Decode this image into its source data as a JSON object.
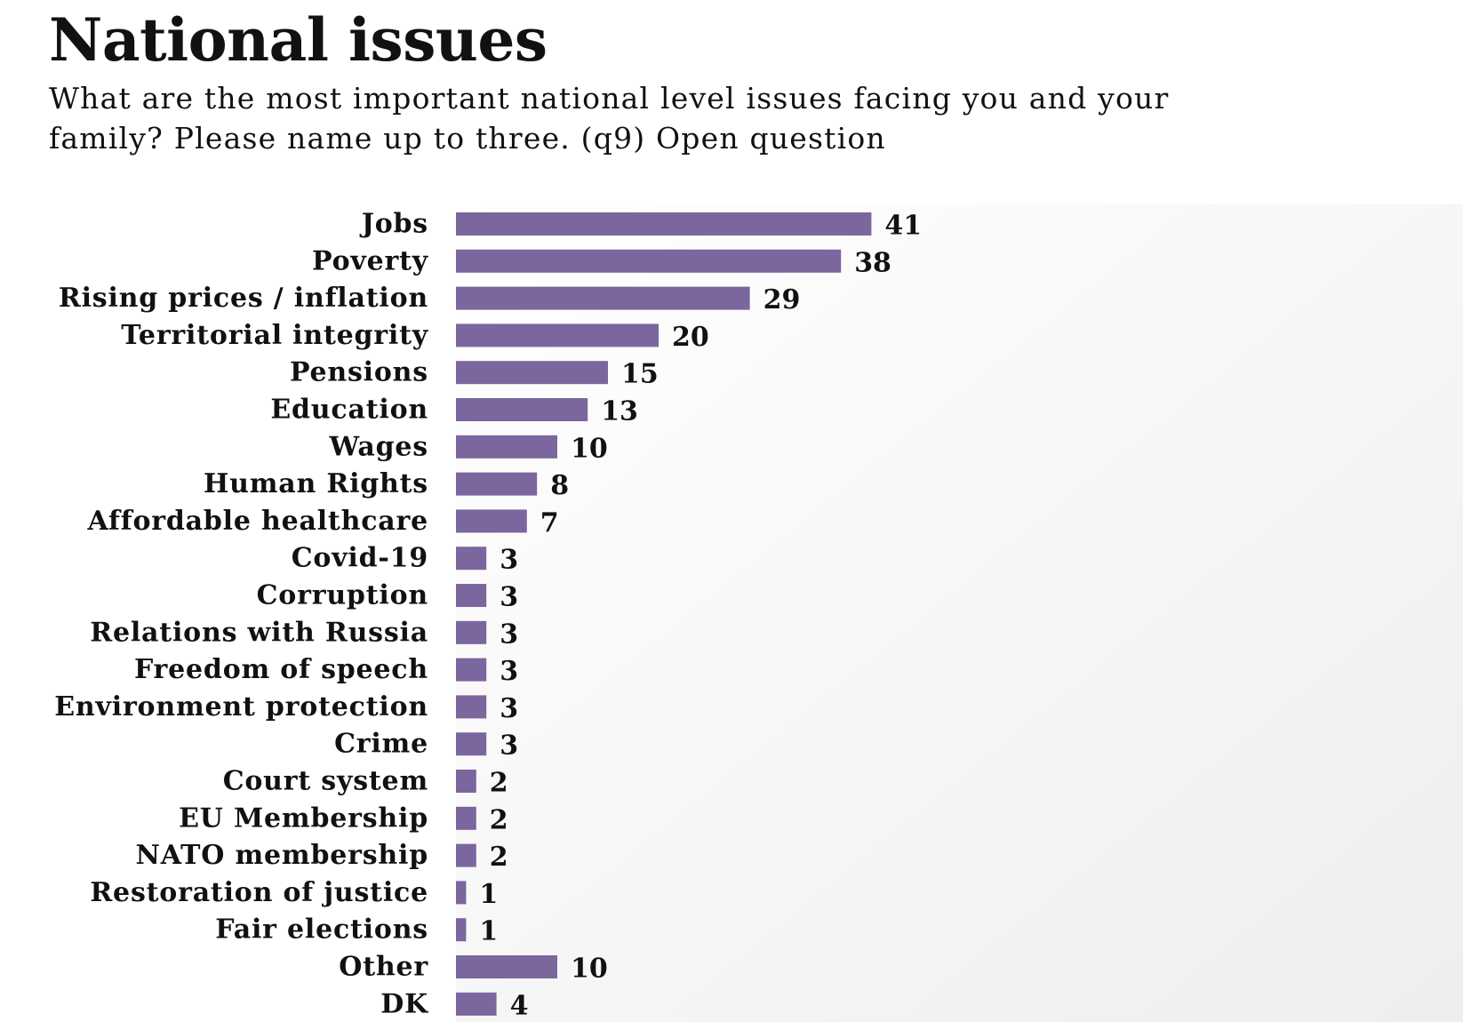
{
  "header": {
    "title": "National issues",
    "subtitle": "What are the most important national level issues facing you and your family? Please name up to three. (q9) Open question"
  },
  "colors": {
    "bar": "#7b669e",
    "panel_light": "#ffffff",
    "panel_dark": "#eeeeee",
    "text": "#111111"
  },
  "chart_data": {
    "type": "bar",
    "orientation": "horizontal",
    "categories": [
      "Jobs",
      "Poverty",
      "Rising prices / inflation",
      "Territorial integrity",
      "Pensions",
      "Education",
      "Wages",
      "Human Rights",
      "Affordable healthcare",
      "Covid-19",
      "Corruption",
      "Relations with Russia",
      "Freedom of speech",
      "Environment protection",
      "Crime",
      "Court system",
      "EU Membership",
      "NATO membership",
      "Restoration of justice",
      "Fair elections",
      "Other",
      "DK"
    ],
    "values": [
      41,
      38,
      29,
      20,
      15,
      13,
      10,
      8,
      7,
      3,
      3,
      3,
      3,
      3,
      3,
      2,
      2,
      2,
      1,
      1,
      10,
      4
    ],
    "data_labels": [
      "41",
      "38",
      "29",
      "20",
      "15",
      "13",
      "10",
      "8",
      "7",
      "3",
      "3",
      "3",
      "3",
      "3",
      "3",
      "2",
      "2",
      "2",
      "1",
      "1",
      "10",
      "4"
    ],
    "title": "National issues",
    "xlabel": "",
    "ylabel": "",
    "xlim": [
      0,
      100
    ],
    "grid": false,
    "legend": "none"
  }
}
